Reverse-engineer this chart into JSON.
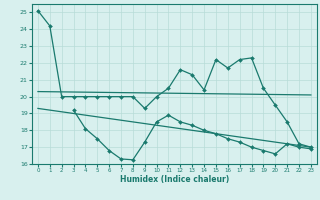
{
  "line1_x": [
    0,
    1,
    2,
    3,
    4,
    5,
    6,
    7,
    8,
    9,
    10,
    11,
    12,
    13,
    14,
    15,
    16,
    17,
    18,
    19,
    20,
    21,
    22,
    23
  ],
  "line1_y": [
    25.1,
    24.2,
    20.0,
    20.0,
    20.0,
    20.0,
    20.0,
    20.0,
    20.0,
    19.3,
    20.0,
    20.5,
    21.6,
    21.3,
    20.4,
    22.2,
    21.7,
    22.2,
    22.3,
    20.5,
    19.5,
    18.5,
    17.2,
    17.0
  ],
  "line2_x": [
    0,
    23
  ],
  "line2_y": [
    20.3,
    20.1
  ],
  "line3_x": [
    3,
    4,
    5,
    6,
    7,
    8,
    9,
    10,
    11,
    12,
    13,
    14,
    15,
    16,
    17,
    18,
    19,
    20,
    21,
    22,
    23
  ],
  "line3_y": [
    19.2,
    18.1,
    17.5,
    16.8,
    16.3,
    16.25,
    17.3,
    18.5,
    18.9,
    18.5,
    18.3,
    18.0,
    17.8,
    17.5,
    17.3,
    17.0,
    16.8,
    16.6,
    17.2,
    17.0,
    16.9
  ],
  "line4_x": [
    0,
    23
  ],
  "line4_y": [
    19.3,
    17.0
  ],
  "color": "#1a7a6e",
  "bg_color": "#d8f0ee",
  "grid_color": "#b8dcd8",
  "xlabel": "Humidex (Indice chaleur)",
  "ylim": [
    16,
    25.5
  ],
  "xlim": [
    -0.5,
    23.5
  ],
  "yticks": [
    16,
    17,
    18,
    19,
    20,
    21,
    22,
    23,
    24,
    25
  ],
  "xticks": [
    0,
    1,
    2,
    3,
    4,
    5,
    6,
    7,
    8,
    9,
    10,
    11,
    12,
    13,
    14,
    15,
    16,
    17,
    18,
    19,
    20,
    21,
    22,
    23
  ]
}
